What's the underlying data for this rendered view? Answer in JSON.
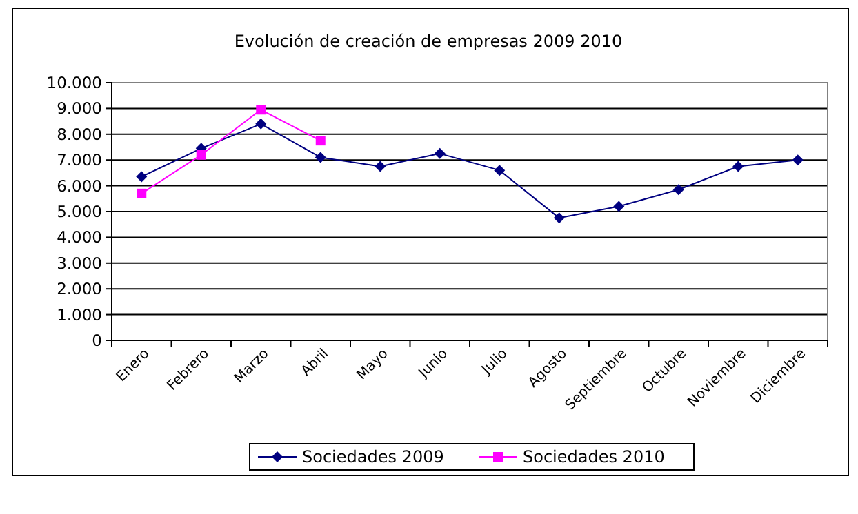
{
  "chart_data": {
    "type": "line",
    "title": "Evolución de creación de empresas 2009 2010",
    "categories": [
      "Enero",
      "Febrero",
      "Marzo",
      "Abril",
      "Mayo",
      "Junio",
      "Julio",
      "Agosto",
      "Septiembre",
      "Octubre",
      "Noviembre",
      "Diciembre"
    ],
    "series": [
      {
        "name": "Sociedades 2009",
        "color": "#000080",
        "marker": "diamond",
        "values": [
          6350,
          7450,
          8400,
          7100,
          6750,
          7250,
          6600,
          4750,
          5200,
          5850,
          6750,
          7000
        ]
      },
      {
        "name": "Sociedades 2010",
        "color": "#ff00ff",
        "marker": "square",
        "values": [
          5700,
          7200,
          8950,
          7750,
          null,
          null,
          null,
          null,
          null,
          null,
          null,
          null
        ]
      }
    ],
    "ylim": [
      0,
      10000
    ],
    "yticks": [
      {
        "value": 0,
        "label": "0"
      },
      {
        "value": 1000,
        "label": "1.000"
      },
      {
        "value": 2000,
        "label": "2.000"
      },
      {
        "value": 3000,
        "label": "3.000"
      },
      {
        "value": 4000,
        "label": "4.000"
      },
      {
        "value": 5000,
        "label": "5.000"
      },
      {
        "value": 6000,
        "label": "6.000"
      },
      {
        "value": 7000,
        "label": "7.000"
      },
      {
        "value": 8000,
        "label": "8.000"
      },
      {
        "value": 9000,
        "label": "9.000"
      },
      {
        "value": 10000,
        "label": "10.000"
      }
    ],
    "grid": "y",
    "legend": "bottom"
  }
}
